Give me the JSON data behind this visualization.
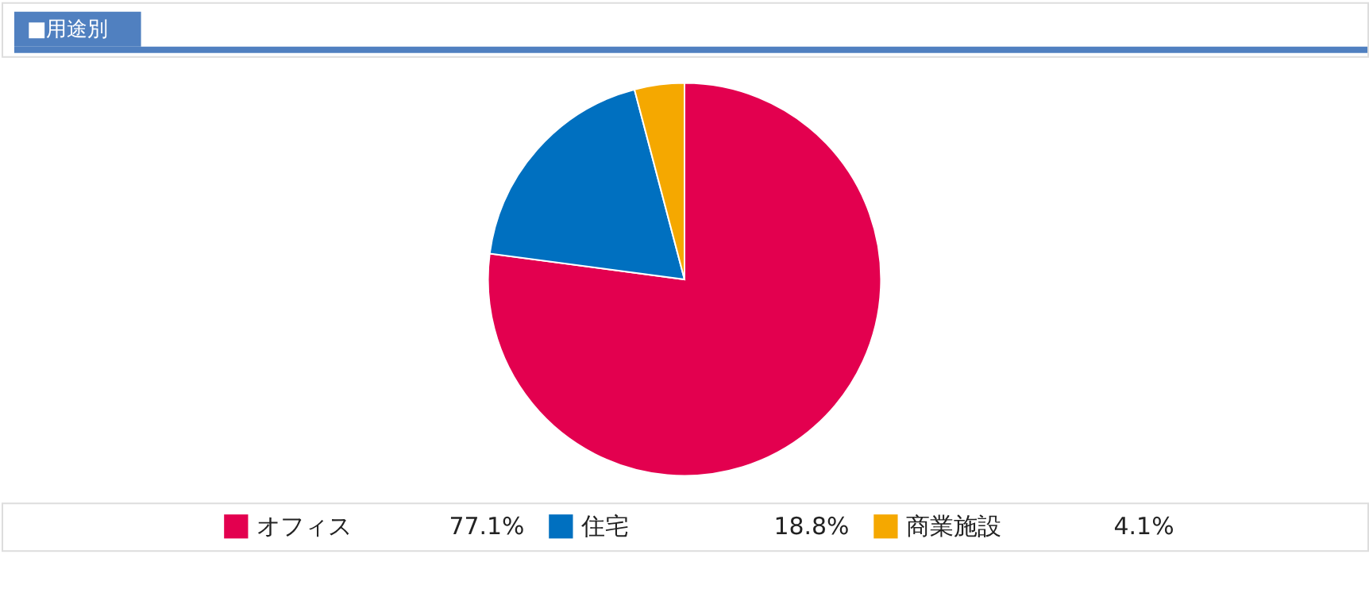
{
  "chart_data": {
    "type": "pie",
    "title": "■用途別",
    "categories": [
      "オフィス",
      "住宅",
      "商業施設"
    ],
    "values": [
      77.1,
      18.8,
      4.1
    ],
    "value_labels": [
      "77.1%",
      "18.8%",
      "4.1%"
    ],
    "colors": [
      "#e3004f",
      "#0070c0",
      "#f5a800"
    ],
    "legend": "bottom"
  }
}
